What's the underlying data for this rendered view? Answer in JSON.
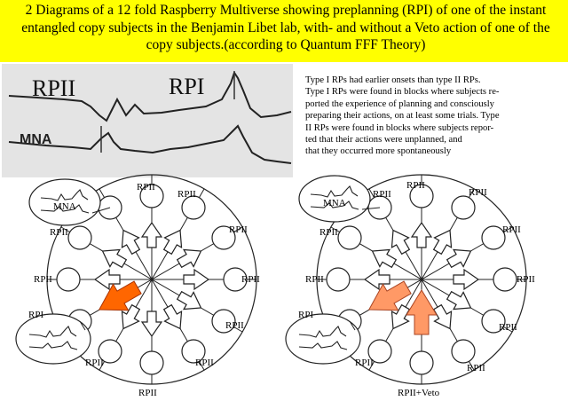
{
  "header": {
    "title": "2 Diagrams of a 12 fold Raspberry Multiverse showing preplanning (RPI) of one of the instant entangled copy subjects in the Benjamin Libet lab, with- and without a Veto action of one of the copy subjects.(according to Quantum FFF Theory)"
  },
  "photo": {
    "label_left": "RPII",
    "label_right": "RPI",
    "label_mna": "MNA"
  },
  "description": {
    "lines": [
      "Type I RPs had earlier onsets than type II RPs.",
      "Type I RPs were found in blocks where subjects re-",
      "ported the experience of planning and consciously",
      "preparing their actions, on at least some trials. Type",
      "II RPs were found in blocks where subjects repor-",
      "ted that their actions were unplanned, and",
      "that they occurred more spontaneously"
    ]
  },
  "diagram_left": {
    "labels": [
      "RPII",
      "RPII",
      "RPII",
      "RPII",
      "RPII",
      "RPII",
      "RPII",
      "RPII",
      "RPII",
      "RPII",
      "RPI"
    ],
    "inset_text": "MNA",
    "arrow_color": "#ff6600"
  },
  "diagram_right": {
    "labels": [
      "RPII",
      "RPII",
      "RPII",
      "RPII",
      "RPII",
      "RPII",
      "RPII",
      "RPII",
      "RPII",
      "RPII",
      "RPI",
      "RPII+Veto"
    ],
    "inset_text": "MNA",
    "arrow_color": "#ff9966"
  },
  "colors": {
    "header_bg": "#ffff00",
    "accent": "#ff6600",
    "accent_light": "#ff9966"
  }
}
